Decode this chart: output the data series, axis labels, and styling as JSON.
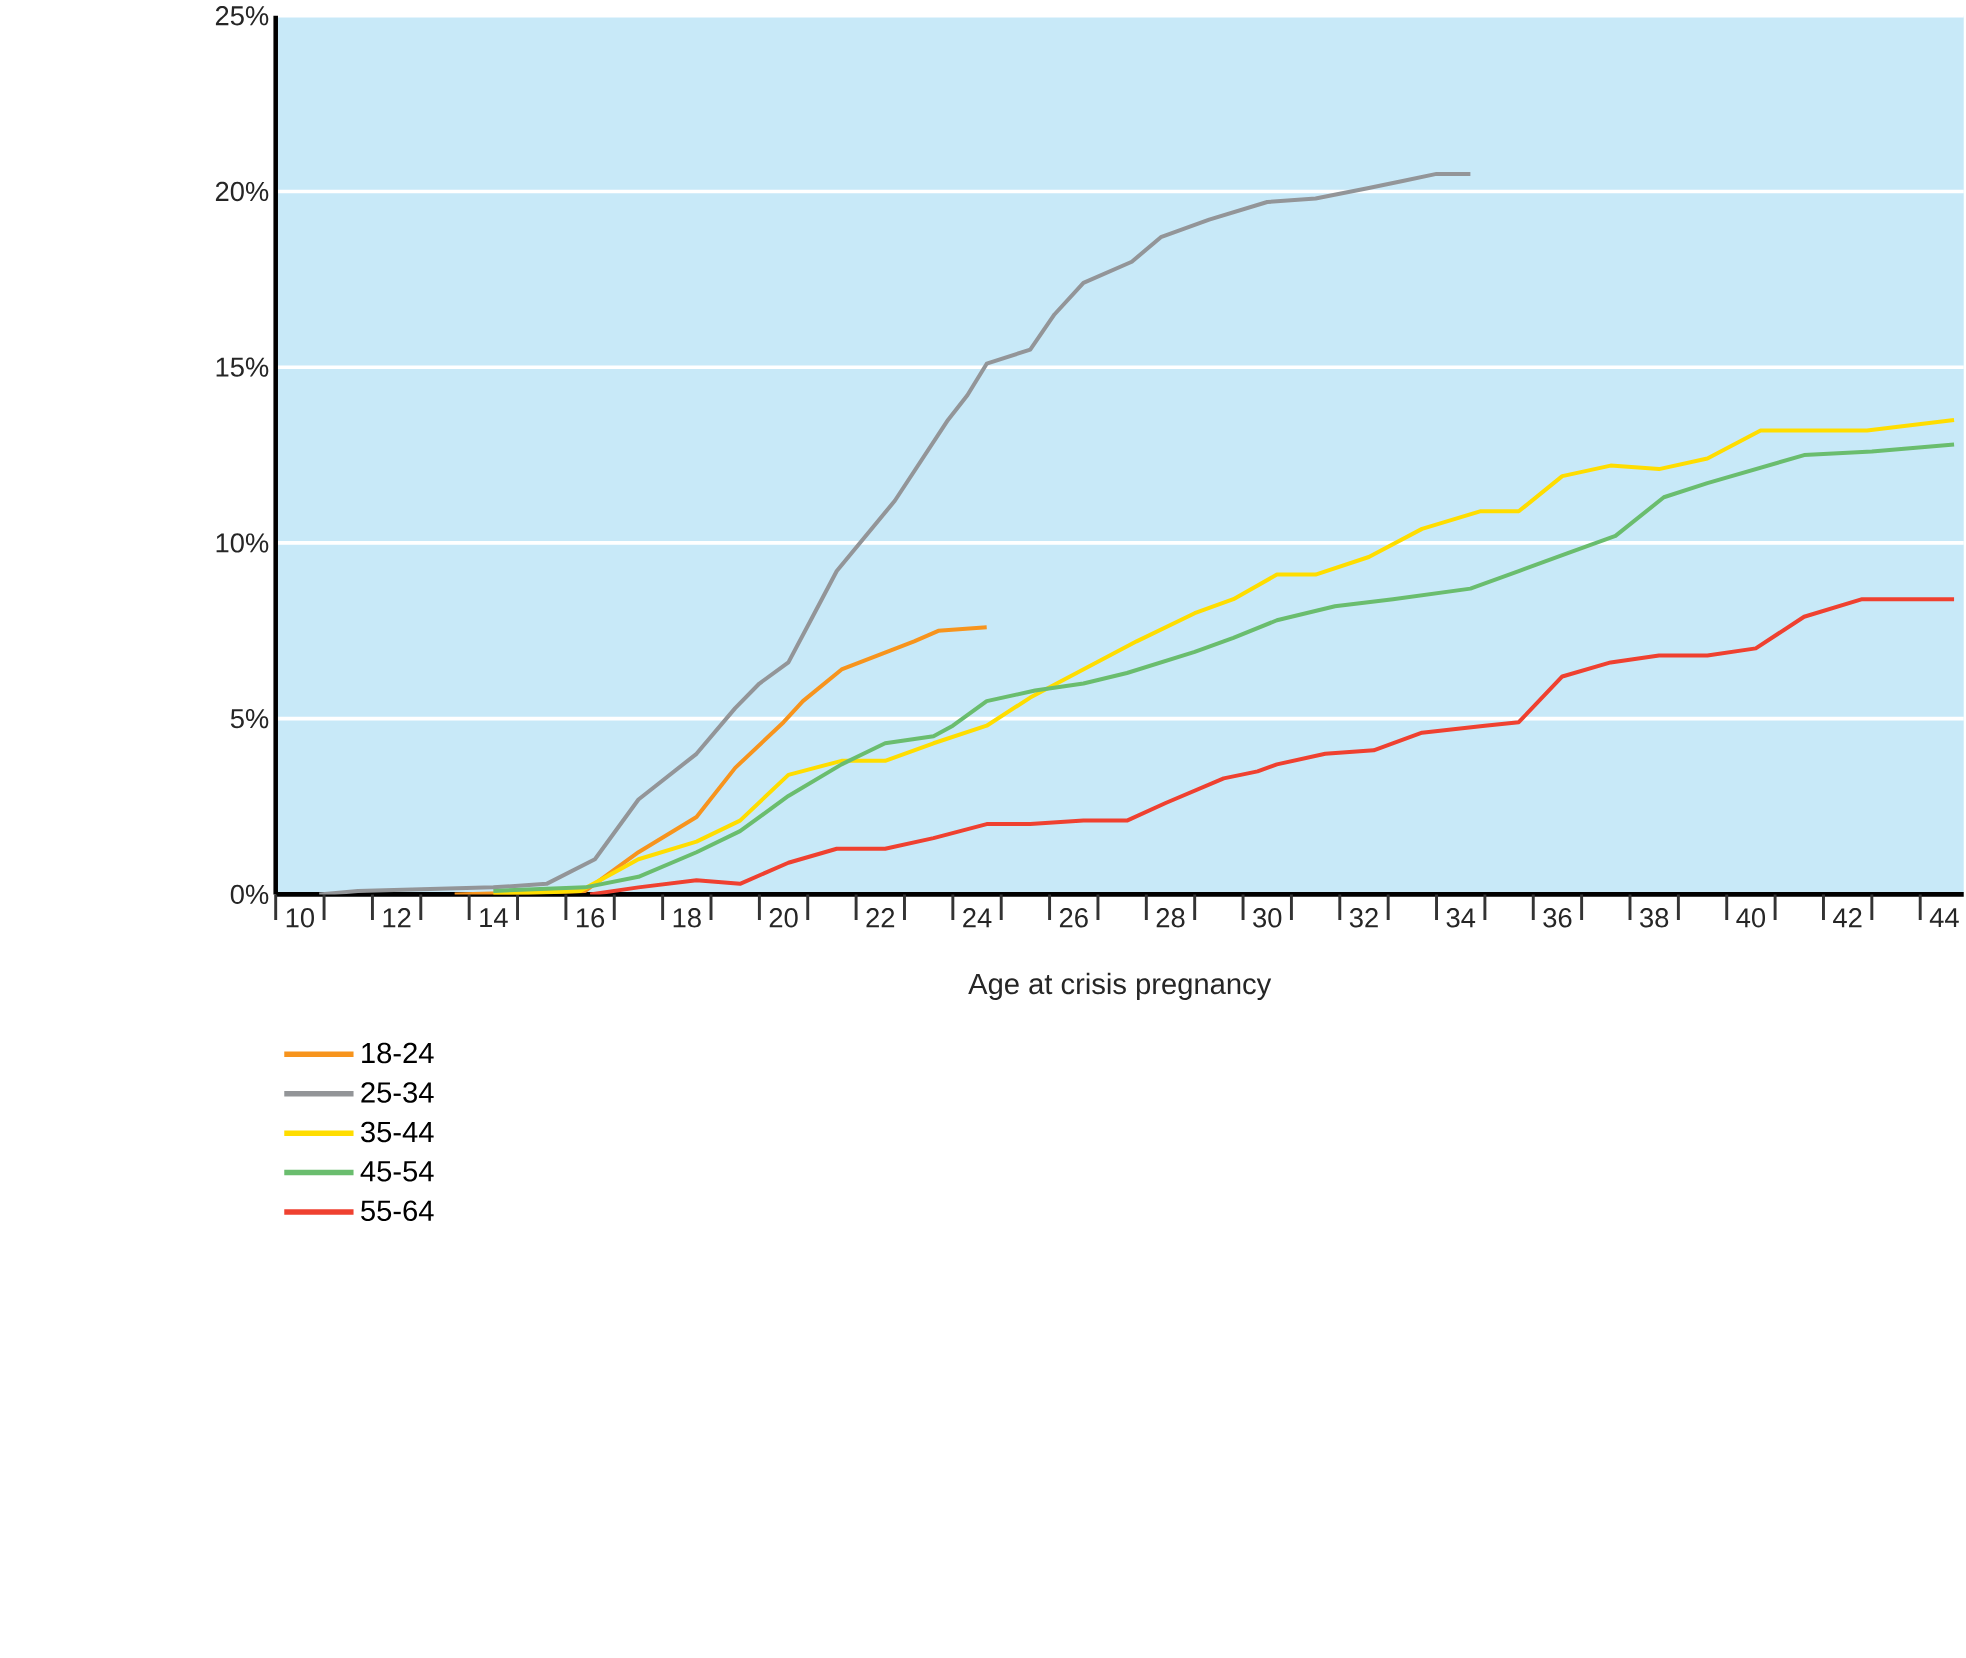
{
  "chart_data": {
    "type": "line",
    "xlabel": "Age at crisis pregnancy",
    "xlim": [
      9.5,
      44.4
    ],
    "ylim": [
      0,
      25
    ],
    "xticks": [
      {
        "value": 10,
        "label": "10"
      },
      {
        "value": 12,
        "label": "12"
      },
      {
        "value": 14,
        "label": "14"
      },
      {
        "value": 16,
        "label": "16"
      },
      {
        "value": 18,
        "label": "18"
      },
      {
        "value": 20,
        "label": "20"
      },
      {
        "value": 22,
        "label": "22"
      },
      {
        "value": 24,
        "label": "24"
      },
      {
        "value": 26,
        "label": "26"
      },
      {
        "value": 28,
        "label": "28"
      },
      {
        "value": 30,
        "label": "30"
      },
      {
        "value": 32,
        "label": "32"
      },
      {
        "value": 34,
        "label": "34"
      },
      {
        "value": 36,
        "label": "36"
      },
      {
        "value": 38,
        "label": "38"
      },
      {
        "value": 40,
        "label": "40"
      },
      {
        "value": 42,
        "label": "42"
      },
      {
        "value": 44,
        "label": "44"
      },
      {
        "value": 9.5,
        "label": null
      },
      {
        "value": 10.5,
        "label": null
      },
      {
        "value": 11.5,
        "label": null
      },
      {
        "value": 12.5,
        "label": null
      },
      {
        "value": 13.5,
        "label": null
      },
      {
        "value": 14.5,
        "label": null
      },
      {
        "value": 15.5,
        "label": null
      },
      {
        "value": 16.5,
        "label": null
      },
      {
        "value": 17.5,
        "label": null
      },
      {
        "value": 18.5,
        "label": null
      },
      {
        "value": 19.5,
        "label": null
      },
      {
        "value": 20.5,
        "label": null
      },
      {
        "value": 21.5,
        "label": null
      },
      {
        "value": 22.5,
        "label": null
      },
      {
        "value": 23.5,
        "label": null
      },
      {
        "value": 24.5,
        "label": null
      },
      {
        "value": 25.5,
        "label": null
      },
      {
        "value": 26.5,
        "label": null
      },
      {
        "value": 27.5,
        "label": null
      },
      {
        "value": 28.5,
        "label": null
      },
      {
        "value": 29.5,
        "label": null
      },
      {
        "value": 30.5,
        "label": null
      },
      {
        "value": 31.5,
        "label": null
      },
      {
        "value": 32.5,
        "label": null
      },
      {
        "value": 33.5,
        "label": null
      },
      {
        "value": 34.5,
        "label": null
      },
      {
        "value": 35.5,
        "label": null
      },
      {
        "value": 36.5,
        "label": null
      },
      {
        "value": 37.5,
        "label": null
      },
      {
        "value": 38.5,
        "label": null
      },
      {
        "value": 39.5,
        "label": null
      },
      {
        "value": 40.5,
        "label": null
      },
      {
        "value": 41.5,
        "label": null
      },
      {
        "value": 42.5,
        "label": null
      },
      {
        "value": 43.5,
        "label": null
      }
    ],
    "yticks": [
      {
        "value": 0,
        "label": "0%"
      },
      {
        "value": 5,
        "label": "5%"
      },
      {
        "value": 10,
        "label": "10%"
      },
      {
        "value": 15,
        "label": "15%"
      },
      {
        "value": 20,
        "label": "20%"
      },
      {
        "value": 25,
        "label": "25%"
      }
    ],
    "grid": "y",
    "legend": "bottom",
    "marker": "none",
    "line_style": "solid",
    "series": [
      {
        "name": "18-24",
        "color": "#f7941d",
        "x": [
          13.2,
          15.9,
          17.0,
          18.2,
          19.0,
          20.0,
          20.4,
          21.2,
          22.7,
          23.2,
          24.2
        ],
        "values": [
          0,
          0.1,
          1.2,
          2.2,
          3.6,
          4.9,
          5.5,
          6.4,
          7.2,
          7.5,
          7.6
        ]
      },
      {
        "name": "25-34",
        "color": "#939598",
        "x": [
          10.4,
          11.2,
          14.0,
          15.1,
          16.1,
          17.0,
          18.2,
          19.0,
          19.5,
          20.1,
          20.6,
          21.1,
          22.3,
          23.4,
          23.8,
          24.2,
          25.1,
          25.6,
          26.2,
          27.2,
          27.8,
          28.8,
          30.0,
          31.0,
          32.1,
          32.8,
          33.5,
          34.2
        ],
        "values": [
          0,
          0.1,
          0.2,
          0.3,
          1.0,
          2.7,
          4.0,
          5.3,
          6.0,
          6.6,
          7.9,
          9.2,
          11.2,
          13.5,
          14.2,
          15.1,
          15.5,
          16.5,
          17.4,
          18.0,
          18.7,
          19.2,
          19.7,
          19.8,
          20.1,
          20.3,
          20.5,
          20.5
        ]
      },
      {
        "name": "35-44",
        "color": "#ffdd00",
        "x": [
          14.0,
          15.8,
          17.0,
          18.2,
          19.1,
          20.1,
          21.2,
          22.1,
          23.1,
          24.2,
          25.1,
          26.2,
          27.3,
          28.5,
          29.3,
          30.2,
          31.0,
          32.1,
          33.2,
          34.4,
          35.2,
          36.1,
          37.1,
          38.1,
          39.1,
          40.2,
          41.1,
          42.4,
          44.2
        ],
        "values": [
          0,
          0.1,
          1.0,
          1.5,
          2.1,
          3.4,
          3.8,
          3.8,
          4.3,
          4.8,
          5.6,
          6.4,
          7.2,
          8.0,
          8.4,
          9.1,
          9.1,
          9.6,
          10.4,
          10.9,
          10.9,
          11.9,
          12.2,
          12.1,
          12.4,
          13.2,
          13.2,
          13.2,
          13.5
        ]
      },
      {
        "name": "45-54",
        "color": "#6abd6e",
        "x": [
          14.0,
          15.9,
          17.0,
          18.2,
          19.1,
          20.1,
          21.2,
          22.1,
          23.1,
          23.5,
          24.2,
          25.2,
          26.2,
          27.1,
          28.5,
          29.3,
          30.2,
          31.4,
          32.6,
          34.2,
          35.2,
          36.2,
          37.2,
          38.2,
          39.1,
          40.1,
          41.1,
          42.5,
          44.2
        ],
        "values": [
          0.1,
          0.2,
          0.5,
          1.2,
          1.8,
          2.8,
          3.7,
          4.3,
          4.5,
          4.8,
          5.5,
          5.8,
          6.0,
          6.3,
          6.9,
          7.3,
          7.8,
          8.2,
          8.4,
          8.7,
          9.2,
          9.7,
          10.2,
          11.3,
          11.7,
          12.1,
          12.5,
          12.6,
          12.8
        ]
      },
      {
        "name": "55-64",
        "color": "#ef4130",
        "x": [
          16.0,
          17.0,
          18.2,
          19.1,
          20.1,
          21.1,
          22.1,
          23.1,
          24.2,
          25.1,
          26.2,
          27.1,
          27.9,
          29.1,
          29.8,
          30.2,
          31.2,
          32.2,
          33.2,
          34.5,
          35.2,
          36.1,
          37.1,
          38.1,
          39.1,
          40.1,
          41.1,
          42.3,
          43.3,
          44.2
        ],
        "values": [
          0,
          0.2,
          0.4,
          0.3,
          0.9,
          1.3,
          1.3,
          1.6,
          2.0,
          2.0,
          2.1,
          2.1,
          2.6,
          3.3,
          3.5,
          3.7,
          4.0,
          4.1,
          4.6,
          4.8,
          4.9,
          6.2,
          6.6,
          6.8,
          6.8,
          7.0,
          7.9,
          8.4,
          8.4,
          8.4
        ]
      }
    ]
  }
}
